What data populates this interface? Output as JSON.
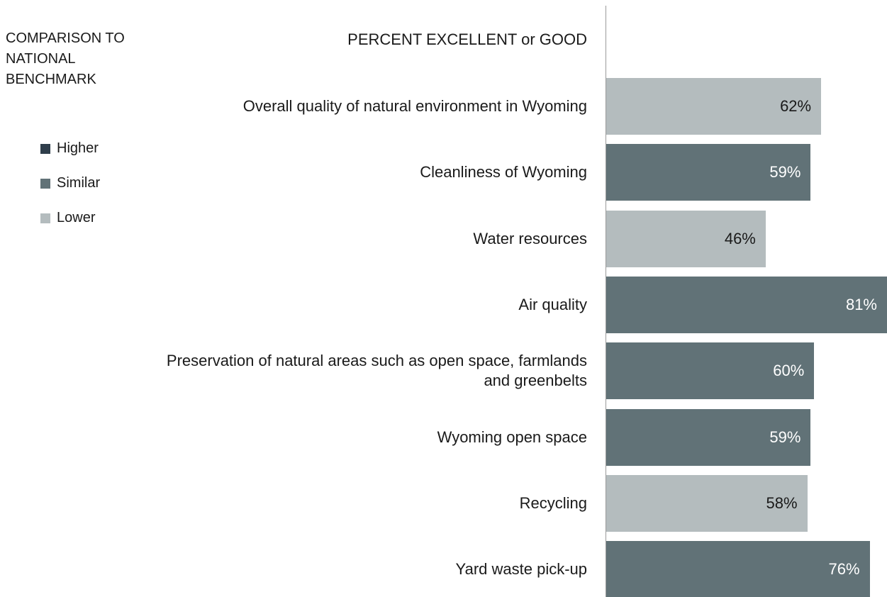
{
  "chart_data": {
    "type": "bar",
    "orientation": "horizontal",
    "title": "PERCENT EXCELLENT or GOOD",
    "categories": [
      "Overall quality of natural environment in Wyoming",
      "Cleanliness of Wyoming",
      "Water resources",
      "Air quality",
      "Preservation of natural areas such as open space, farmlands and greenbelts",
      "Wyoming open space",
      "Recycling",
      "Yard waste pick-up"
    ],
    "values": [
      62,
      59,
      46,
      81,
      60,
      59,
      58,
      76
    ],
    "value_labels": [
      "62%",
      "59%",
      "46%",
      "81%",
      "60%",
      "59%",
      "58%",
      "76%"
    ],
    "comparison": [
      "Lower",
      "Similar",
      "Lower",
      "Similar",
      "Similar",
      "Similar",
      "Lower",
      "Similar"
    ],
    "xlim": [
      0,
      81
    ],
    "legend": {
      "title": "COMPARISON TO NATIONAL BENCHMARK",
      "items": [
        {
          "name": "Higher",
          "color": "#2f3e4b"
        },
        {
          "name": "Similar",
          "color": "#617277"
        },
        {
          "name": "Lower",
          "color": "#b4bcbe"
        }
      ]
    }
  }
}
